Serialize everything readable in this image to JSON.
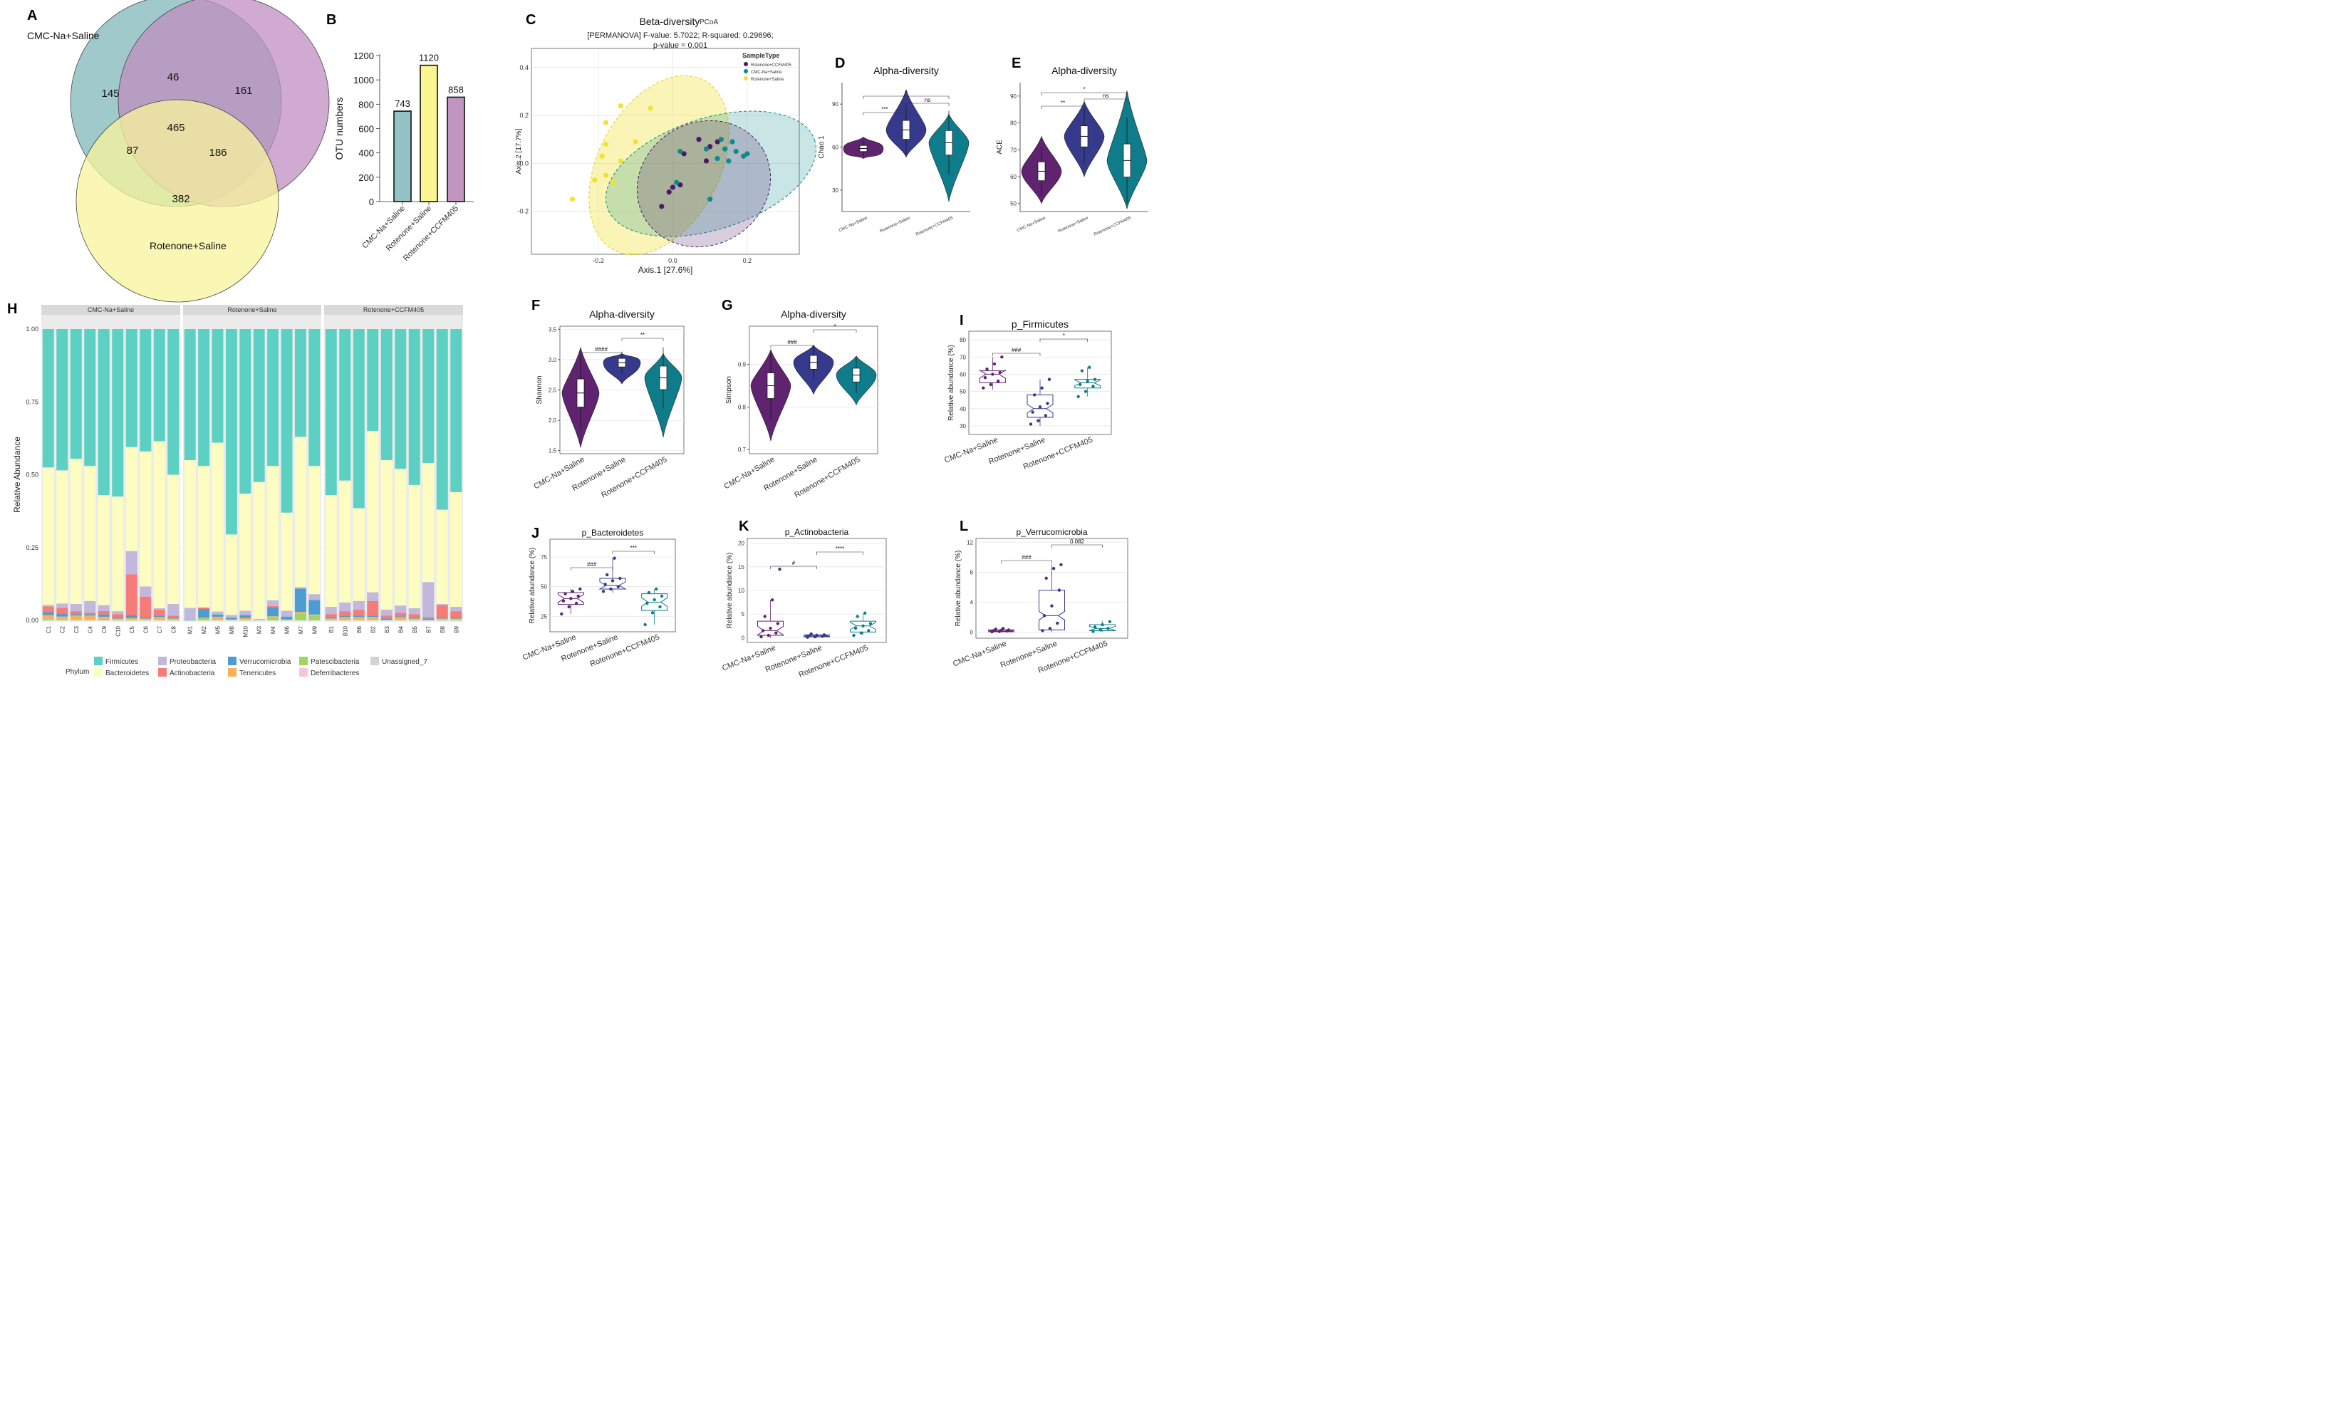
{
  "colors": {
    "saline": "#5f2370",
    "rotenone": "#363a8c",
    "ccfm": "#0f7c8b",
    "venn_cmc": "#7fb7b8",
    "venn_rot": "#f8f49c",
    "venn_ccfm": "#c08ec0",
    "bar_cmc": "#92c2c4",
    "bar_rot": "#fbf592",
    "bar_ccfm": "#c295c1",
    "pcoa_ccfm": "#4b1a66",
    "pcoa_cmc": "#0d8a8a",
    "pcoa_rot": "#f2e231",
    "firmicutes": "#5dd0c4",
    "bacteroidetes": "#fdfdc2",
    "proteobacteria": "#c2b8dc",
    "actinobacteria": "#f57c78",
    "verrucomicrobia": "#4c9ed2",
    "tenericutes": "#f8b35a",
    "patescibacteria": "#9fd560",
    "deferribacteres": "#f8c3dc",
    "unassigned": "#d2d2d2"
  },
  "panels": {
    "A": "A",
    "B": "B",
    "C": "C",
    "D": "D",
    "E": "E",
    "F": "F",
    "G": "G",
    "H": "H",
    "I": "I",
    "J": "J",
    "K": "K",
    "L": "L"
  },
  "chart_data": [
    {
      "id": "A",
      "type": "venn",
      "sets": [
        "CMC-Na+Saline",
        "Rotenone+Saline"
      ],
      "regions": {
        "cmc_only": 145,
        "ccfm_only": 161,
        "rot_only": 382,
        "cmc_ccfm": 46,
        "cmc_rot": 87,
        "rot_ccfm": 186,
        "all": 465
      }
    },
    {
      "id": "B",
      "type": "bar",
      "categories": [
        "CMC-Na+Saline",
        "Rotenone+Saline",
        "Rotenone+CCFM405"
      ],
      "values": [
        743,
        1120,
        858
      ],
      "ylabel": "OTU numbers",
      "ylim": [
        0,
        1200
      ],
      "yticks": [
        "0",
        "200",
        "400",
        "600",
        "800",
        "1000",
        "1200"
      ]
    },
    {
      "id": "C",
      "type": "scatter",
      "title": "Beta-diversity",
      "method": "PCoA",
      "subtitle1": "[PERMANOVA] F-value: 5.7022; R-squared: 0.29696;",
      "subtitle2": "p-value = 0.001",
      "xlabel": "Axis.1   [27.6%]",
      "ylabel": "Axis.2   [17.7%]",
      "xlim": [
        -0.38,
        0.34
      ],
      "ylim": [
        -0.38,
        0.48
      ],
      "xticks": [
        "-0.2",
        "0.0",
        "0.2"
      ],
      "yticks": [
        "-0.2",
        "0.0",
        "0.2",
        "0.4"
      ],
      "legend_title": "SampleType",
      "series": [
        {
          "name": "Rotenone+CCFM405",
          "points": [
            [
              0.07,
              0.1
            ],
            [
              0.12,
              0.09
            ],
            [
              0.1,
              0.07
            ],
            [
              0.03,
              0.04
            ],
            [
              0.09,
              0.01
            ],
            [
              0.0,
              -0.1
            ],
            [
              0.02,
              -0.09
            ],
            [
              -0.01,
              -0.12
            ],
            [
              -0.03,
              -0.18
            ]
          ]
        },
        {
          "name": "CMC-Na+Saline",
          "points": [
            [
              0.13,
              0.1
            ],
            [
              0.16,
              0.09
            ],
            [
              0.09,
              0.06
            ],
            [
              0.14,
              0.06
            ],
            [
              0.02,
              0.05
            ],
            [
              0.17,
              0.05
            ],
            [
              0.2,
              0.04
            ],
            [
              0.19,
              0.03
            ],
            [
              0.12,
              0.02
            ],
            [
              0.15,
              0.01
            ],
            [
              0.01,
              -0.08
            ],
            [
              0.1,
              -0.15
            ]
          ]
        },
        {
          "name": "Rotenone+Saline",
          "points": [
            [
              -0.14,
              0.24
            ],
            [
              -0.06,
              0.23
            ],
            [
              -0.18,
              0.17
            ],
            [
              -0.18,
              0.08
            ],
            [
              -0.1,
              0.09
            ],
            [
              -0.19,
              0.03
            ],
            [
              -0.14,
              0.01
            ],
            [
              -0.18,
              -0.05
            ],
            [
              -0.16,
              -0.08
            ],
            [
              -0.21,
              -0.07
            ],
            [
              -0.27,
              -0.15
            ]
          ]
        }
      ]
    },
    {
      "id": "D",
      "type": "violin",
      "title": "Alpha-diversity",
      "ylabel": "Chao 1",
      "ylim": [
        15,
        105
      ],
      "yticks": [
        "30",
        "60",
        "90"
      ],
      "categories": [
        "CMC-Na+Saline",
        "Rotenone+Saline",
        "Rotenone+CCFM405"
      ],
      "medians": [
        59,
        72,
        63
      ],
      "ranges": [
        [
          52,
          67
        ],
        [
          53,
          100
        ],
        [
          22,
          83
        ]
      ],
      "sig": [
        {
          "a": 0,
          "b": 1,
          "label": "***"
        },
        {
          "a": 1,
          "b": 2,
          "label": "ns"
        },
        {
          "a": 0,
          "b": 2,
          "label": "*"
        }
      ]
    },
    {
      "id": "E",
      "type": "violin",
      "title": "Alpha-diversity",
      "ylabel": "ACE",
      "ylim": [
        47,
        95
      ],
      "yticks": [
        "50",
        "60",
        "70",
        "80",
        "90"
      ],
      "categories": [
        "CMC-Na+Saline",
        "Rotenone+Saline",
        "Rotenone+CCFM405"
      ],
      "medians": [
        62,
        75,
        66
      ],
      "ranges": [
        [
          50,
          75
        ],
        [
          60,
          88
        ],
        [
          48,
          92
        ]
      ],
      "sig": [
        {
          "a": 0,
          "b": 1,
          "label": "**"
        },
        {
          "a": 1,
          "b": 2,
          "label": "ns"
        },
        {
          "a": 0,
          "b": 2,
          "label": "*"
        }
      ]
    },
    {
      "id": "F",
      "type": "violin",
      "title": "Alpha-diversity",
      "ylabel": "Shannon",
      "ylim": [
        1.45,
        3.55
      ],
      "yticks": [
        "1.5",
        "2.0",
        "2.5",
        "3.0",
        "3.5"
      ],
      "categories": [
        "CMC-Na+Saline",
        "Rotenone+Saline",
        "Rotenone+CCFM405"
      ],
      "medians": [
        2.45,
        2.95,
        2.7
      ],
      "ranges": [
        [
          1.55,
          3.2
        ],
        [
          2.6,
          3.1
        ],
        [
          1.72,
          3.1
        ]
      ],
      "sig": [
        {
          "a": 0,
          "b": 1,
          "label": "####"
        },
        {
          "a": 1,
          "b": 2,
          "label": "**"
        }
      ]
    },
    {
      "id": "G",
      "type": "violin",
      "title": "Alpha-diversity",
      "ylabel": "Simpson",
      "ylim": [
        0.69,
        0.99
      ],
      "yticks": [
        "0.7",
        "0.8",
        "0.9"
      ],
      "categories": [
        "CMC-Na+Saline",
        "Rotenone+Saline",
        "Rotenone+CCFM405"
      ],
      "medians": [
        0.85,
        0.905,
        0.875
      ],
      "ranges": [
        [
          0.72,
          0.935
        ],
        [
          0.83,
          0.945
        ],
        [
          0.805,
          0.92
        ]
      ],
      "sig": [
        {
          "a": 0,
          "b": 1,
          "label": "###"
        },
        {
          "a": 1,
          "b": 2,
          "label": "*"
        }
      ]
    },
    {
      "id": "I",
      "type": "box",
      "title": "p_Firmicutes",
      "ylabel": "Relative abundance (%)",
      "ylim": [
        25,
        85
      ],
      "yticks": [
        "30",
        "40",
        "50",
        "60",
        "70",
        "80"
      ],
      "categories": [
        "CMC-Na+Saline",
        "Rotenone+Saline",
        "Rotenone+CCFM405"
      ],
      "boxes": [
        [
          51,
          55,
          60,
          62,
          70
        ],
        [
          30,
          35,
          40,
          48,
          57
        ],
        [
          47,
          52,
          55,
          57,
          64
        ]
      ],
      "points": [
        [
          52,
          54,
          56,
          58,
          60,
          61,
          63,
          66,
          70
        ],
        [
          31,
          33,
          36,
          38,
          41,
          43,
          48,
          52,
          57
        ],
        [
          47,
          50,
          53,
          54,
          56,
          57,
          62,
          64
        ]
      ],
      "sig": [
        {
          "a": 0,
          "b": 1,
          "label": "###"
        },
        {
          "a": 1,
          "b": 2,
          "label": "*"
        }
      ]
    },
    {
      "id": "J",
      "type": "box",
      "title": "p_Bacteroidetes",
      "ylabel": "Relative abundance (%)",
      "ylim": [
        12,
        90
      ],
      "yticks": [
        "25",
        "50",
        "75"
      ],
      "categories": [
        "CMC-Na+Saline",
        "Rotenone+Saline",
        "Rotenone+CCFM405"
      ],
      "boxes": [
        [
          27,
          35,
          40,
          45,
          48
        ],
        [
          45,
          48,
          51,
          57,
          74
        ],
        [
          18,
          30,
          37,
          44,
          48
        ]
      ],
      "points": [
        [
          27,
          33,
          36,
          38,
          40,
          42,
          44,
          46,
          48
        ],
        [
          46,
          48,
          50,
          52,
          55,
          57,
          60,
          74
        ],
        [
          18,
          28,
          33,
          36,
          39,
          42,
          45,
          48
        ]
      ],
      "sig": [
        {
          "a": 0,
          "b": 1,
          "label": "###"
        },
        {
          "a": 1,
          "b": 2,
          "label": "***"
        }
      ]
    },
    {
      "id": "K",
      "type": "box",
      "title": "p_Actinobacteria",
      "ylabel": "Relative abundance (%)",
      "ylim": [
        -1,
        21
      ],
      "yticks": [
        "0",
        "5",
        "10",
        "15",
        "20"
      ],
      "categories": [
        "CMC-Na+Saline",
        "Rotenone+Saline",
        "Rotenone+CCFM405"
      ],
      "boxes": [
        [
          0,
          0.5,
          1.5,
          3.5,
          8
        ],
        [
          0,
          0.2,
          0.4,
          0.6,
          0.9
        ],
        [
          0.5,
          1.2,
          2.5,
          3.5,
          5
        ]
      ],
      "points": [
        [
          0.2,
          0.5,
          1,
          1.5,
          2,
          3,
          4.5,
          8,
          14.5
        ],
        [
          0.1,
          0.2,
          0.3,
          0.4,
          0.5,
          0.6,
          0.8
        ],
        [
          0.5,
          1,
          1.5,
          2,
          2.5,
          3,
          4.5,
          5.2
        ]
      ],
      "sig": [
        {
          "a": 0,
          "b": 1,
          "label": "#"
        },
        {
          "a": 1,
          "b": 2,
          "label": "****"
        }
      ]
    },
    {
      "id": "L",
      "type": "box",
      "title": "p_Verrucomicrobia",
      "ylabel": "Relative abundance (%)",
      "ylim": [
        -0.8,
        12.5
      ],
      "yticks": [
        "0",
        "4",
        "8",
        "12"
      ],
      "categories": [
        "CMC-Na+Saline",
        "Rotenone+Saline",
        "Rotenone+CCFM405"
      ],
      "boxes": [
        [
          0,
          0.05,
          0.15,
          0.3,
          0.5
        ],
        [
          0,
          0.3,
          2.2,
          5.6,
          9
        ],
        [
          0,
          0.2,
          0.5,
          1,
          1.5
        ]
      ],
      "points": [
        [
          0.05,
          0.1,
          0.15,
          0.2,
          0.25,
          0.3,
          0.4,
          0.5
        ],
        [
          0.2,
          0.5,
          1.2,
          2.2,
          3.5,
          5.6,
          7.2,
          8.5,
          9
        ],
        [
          0.1,
          0.3,
          0.5,
          0.7,
          1,
          1.4
        ]
      ],
      "sig": [
        {
          "a": 0,
          "b": 1,
          "label": "###"
        },
        {
          "a": 1,
          "b": 2,
          "label": "0.082"
        }
      ]
    },
    {
      "id": "H",
      "type": "stacked-bar",
      "ylabel": "Relative Abundance",
      "yticks": [
        "0.00",
        "0.25",
        "0.50",
        "0.75",
        "1.00"
      ],
      "legend_title": "Phylum",
      "facets": [
        {
          "name": "CMC-Na+Saline",
          "samples": [
            "C1",
            "C2",
            "C3",
            "C4",
            "C9",
            "C10",
            "C5",
            "C6",
            "C7",
            "C8"
          ]
        },
        {
          "name": "Rotenone+Saline",
          "samples": [
            "M1",
            "M2",
            "M5",
            "M8",
            "M10",
            "M3",
            "M4",
            "M6",
            "M7",
            "M9"
          ]
        },
        {
          "name": "Rotenone+CCFM405",
          "samples": [
            "B1",
            "B10",
            "B6",
            "B2",
            "B3",
            "B4",
            "B5",
            "B7",
            "B8",
            "B9"
          ]
        }
      ],
      "phyla": [
        "Firmicutes",
        "Bacteroidetes",
        "Proteobacteria",
        "Actinobacteria",
        "Verrucomicrobia",
        "Tenericutes",
        "Patescibacteria",
        "Deferribacteres",
        "Unassigned_7"
      ],
      "composition": [
        [
          [
            0.015,
            0.02,
            0.01,
            0.005
          ],
          [
            0.01,
            0.02,
            0.01,
            0.015
          ],
          [
            0.015,
            0.01,
            0.005,
            0.025
          ],
          [
            0.015,
            0.005,
            0.005,
            0.04
          ],
          [
            0.01,
            0.012,
            0.008,
            0.02
          ],
          [
            0.005,
            0.01,
            0.005,
            0.01
          ],
          [
            0.005,
            0.14,
            0.01,
            0.08
          ],
          [
            0.005,
            0.07,
            0.005,
            0.035
          ],
          [
            0.01,
            0.02,
            0.005,
            0.005
          ],
          [
            0.005,
            0.005,
            0.005,
            0.04
          ]
        ],
        [
          [
            0.0,
            0.0,
            0.002,
            0.04
          ],
          [
            0.0,
            0.005,
            0.03,
            0.0
          ],
          [
            0.01,
            0.0,
            0.008,
            0.01
          ],
          [
            0.002,
            0.0,
            0.005,
            0.01
          ],
          [
            0.005,
            0.0,
            0.01,
            0.015
          ],
          [
            0.0,
            0.0,
            0.0,
            0.005
          ],
          [
            0.005,
            0.005,
            0.03,
            0.02
          ],
          [
            0.0,
            0.0,
            0.01,
            0.02
          ],
          [
            0.005,
            0.0,
            0.08,
            0.005
          ],
          [
            0.005,
            0.0,
            0.05,
            0.02
          ]
        ],
        [
          [
            0.005,
            0.01,
            0.005,
            0.025
          ],
          [
            0.01,
            0.015,
            0.005,
            0.03
          ],
          [
            0.01,
            0.02,
            0.005,
            0.03
          ],
          [
            0.01,
            0.05,
            0.005,
            0.03
          ],
          [
            0.0,
            0.01,
            0.005,
            0.02
          ],
          [
            0.01,
            0.012,
            0.003,
            0.025
          ],
          [
            0.005,
            0.01,
            0.005,
            0.02
          ],
          [
            0.0,
            0.005,
            0.005,
            0.12
          ],
          [
            0.005,
            0.04,
            0.005,
            0.005
          ],
          [
            0.005,
            0.02,
            0.005,
            0.015
          ]
        ]
      ],
      "bacteroidetes_top": [
        [
          0.525,
          0.515,
          0.555,
          0.53,
          0.43,
          0.425,
          0.595,
          0.58,
          0.615,
          0.5
        ],
        [
          0.55,
          0.53,
          0.61,
          0.295,
          0.435,
          0.475,
          0.53,
          0.37,
          0.63,
          0.53
        ],
        [
          0.43,
          0.48,
          0.385,
          0.65,
          0.55,
          0.52,
          0.465,
          0.54,
          0.38,
          0.44
        ]
      ]
    }
  ],
  "legend": {
    "items": [
      {
        "name": "Firmicutes",
        "color_key": "firmicutes"
      },
      {
        "name": "Bacteroidetes",
        "color_key": "bacteroidetes"
      },
      {
        "name": "Proteobacteria",
        "color_key": "proteobacteria"
      },
      {
        "name": "Actinobacteria",
        "color_key": "actinobacteria"
      },
      {
        "name": "Verrucomicrobia",
        "color_key": "verrucomicrobia"
      },
      {
        "name": "Tenericutes",
        "color_key": "tenericutes"
      },
      {
        "name": "Patescibacteria",
        "color_key": "patescibacteria"
      },
      {
        "name": "Deferribacteres",
        "color_key": "deferribacteres"
      },
      {
        "name": "Unassigned_7",
        "color_key": "unassigned"
      }
    ]
  }
}
